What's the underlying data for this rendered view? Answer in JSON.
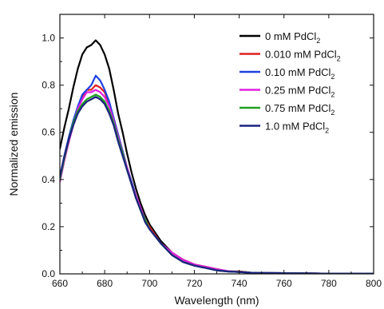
{
  "chart_data": {
    "type": "line",
    "title": "",
    "xlabel": "Wavelength (nm)",
    "ylabel": "Normalized emission",
    "xlim": [
      660,
      800
    ],
    "ylim": [
      0.0,
      1.1
    ],
    "x_ticks": [
      660,
      680,
      700,
      720,
      740,
      760,
      780,
      800
    ],
    "x_tick_labels": [
      "660",
      "680",
      "700",
      "720",
      "740",
      "760",
      "780",
      "800"
    ],
    "y_ticks": [
      0.0,
      0.2,
      0.4,
      0.6,
      0.8,
      1.0
    ],
    "y_tick_labels": [
      "0.0",
      "0.2",
      "0.4",
      "0.6",
      "0.8",
      "1.0"
    ],
    "grid": false,
    "legend_position": "top-right",
    "series": [
      {
        "name": "0 mM PdCl2",
        "color": "#000000",
        "x": [
          660,
          662,
          664,
          666,
          668,
          670,
          672,
          674,
          676,
          678,
          680,
          682,
          684,
          686,
          688,
          690,
          692,
          694,
          696,
          698,
          700,
          705,
          710,
          715,
          720,
          725,
          730,
          735,
          740,
          745,
          750,
          760,
          770,
          780,
          790,
          800
        ],
        "y": [
          0.53,
          0.62,
          0.7,
          0.79,
          0.87,
          0.93,
          0.96,
          0.97,
          0.99,
          0.97,
          0.93,
          0.87,
          0.78,
          0.68,
          0.6,
          0.51,
          0.43,
          0.36,
          0.3,
          0.25,
          0.21,
          0.14,
          0.09,
          0.06,
          0.04,
          0.03,
          0.02,
          0.01,
          0.01,
          0.005,
          0.004,
          0.003,
          0.002,
          0.001,
          0.001,
          0.001
        ]
      },
      {
        "name": "0.010 mM PdCl2",
        "color": "#e02020",
        "x": [
          660,
          662,
          664,
          666,
          668,
          670,
          672,
          674,
          676,
          678,
          680,
          682,
          684,
          686,
          688,
          690,
          692,
          694,
          696,
          698,
          700,
          705,
          710,
          715,
          720,
          725,
          730,
          735,
          740,
          745,
          750,
          760,
          770,
          780,
          790,
          800
        ],
        "y": [
          0.4,
          0.49,
          0.56,
          0.64,
          0.7,
          0.75,
          0.78,
          0.78,
          0.8,
          0.79,
          0.77,
          0.72,
          0.66,
          0.59,
          0.52,
          0.45,
          0.39,
          0.33,
          0.28,
          0.23,
          0.2,
          0.13,
          0.09,
          0.06,
          0.04,
          0.03,
          0.02,
          0.01,
          0.01,
          0.005,
          0.004,
          0.003,
          0.002,
          0.001,
          0.001,
          0.001
        ]
      },
      {
        "name": "0.10 mM PdCl2",
        "color": "#2040e0",
        "x": [
          660,
          662,
          664,
          666,
          668,
          670,
          672,
          674,
          676,
          678,
          680,
          682,
          684,
          686,
          688,
          690,
          692,
          694,
          696,
          698,
          700,
          705,
          710,
          715,
          720,
          725,
          730,
          735,
          740,
          745,
          750,
          760,
          770,
          780,
          790,
          800
        ],
        "y": [
          0.41,
          0.5,
          0.58,
          0.65,
          0.71,
          0.76,
          0.78,
          0.8,
          0.84,
          0.82,
          0.78,
          0.73,
          0.66,
          0.59,
          0.52,
          0.45,
          0.39,
          0.33,
          0.28,
          0.23,
          0.19,
          0.13,
          0.08,
          0.05,
          0.035,
          0.025,
          0.015,
          0.01,
          0.008,
          0.005,
          0.004,
          0.003,
          0.002,
          0.001,
          0.001,
          0.001
        ]
      },
      {
        "name": "0.25 mM PdCl2",
        "color": "#e020e0",
        "x": [
          660,
          662,
          664,
          666,
          668,
          670,
          672,
          674,
          676,
          678,
          680,
          682,
          684,
          686,
          688,
          690,
          692,
          694,
          696,
          698,
          700,
          705,
          710,
          715,
          720,
          725,
          730,
          735,
          740,
          745,
          750,
          760,
          770,
          780,
          790,
          800
        ],
        "y": [
          0.39,
          0.48,
          0.56,
          0.63,
          0.7,
          0.74,
          0.77,
          0.77,
          0.78,
          0.77,
          0.75,
          0.71,
          0.65,
          0.58,
          0.51,
          0.45,
          0.38,
          0.33,
          0.28,
          0.23,
          0.19,
          0.13,
          0.09,
          0.06,
          0.04,
          0.03,
          0.02,
          0.012,
          0.008,
          0.005,
          0.004,
          0.003,
          0.002,
          0.001,
          0.001,
          0.001
        ]
      },
      {
        "name": "0.75 mM PdCl2",
        "color": "#20a020",
        "x": [
          660,
          662,
          664,
          666,
          668,
          670,
          672,
          674,
          676,
          678,
          680,
          682,
          684,
          686,
          688,
          690,
          692,
          694,
          696,
          698,
          700,
          705,
          710,
          715,
          720,
          725,
          730,
          735,
          740,
          745,
          750,
          760,
          770,
          780,
          790,
          800
        ],
        "y": [
          0.4,
          0.49,
          0.57,
          0.64,
          0.69,
          0.72,
          0.74,
          0.75,
          0.76,
          0.75,
          0.73,
          0.69,
          0.64,
          0.57,
          0.51,
          0.44,
          0.38,
          0.32,
          0.27,
          0.23,
          0.19,
          0.13,
          0.08,
          0.05,
          0.035,
          0.025,
          0.015,
          0.01,
          0.008,
          0.005,
          0.004,
          0.003,
          0.002,
          0.001,
          0.001,
          0.001
        ]
      },
      {
        "name": "1.0 mM PdCl2",
        "color": "#1a237e",
        "x": [
          660,
          662,
          664,
          666,
          668,
          670,
          672,
          674,
          676,
          678,
          680,
          682,
          684,
          686,
          688,
          690,
          692,
          694,
          696,
          698,
          700,
          705,
          710,
          715,
          720,
          725,
          730,
          735,
          740,
          745,
          750,
          760,
          770,
          780,
          790,
          800
        ],
        "y": [
          0.41,
          0.5,
          0.57,
          0.63,
          0.68,
          0.71,
          0.73,
          0.74,
          0.75,
          0.74,
          0.72,
          0.68,
          0.63,
          0.56,
          0.5,
          0.44,
          0.38,
          0.32,
          0.27,
          0.22,
          0.19,
          0.13,
          0.08,
          0.05,
          0.035,
          0.025,
          0.015,
          0.01,
          0.008,
          0.005,
          0.004,
          0.003,
          0.002,
          0.001,
          0.001,
          0.001
        ]
      }
    ]
  }
}
